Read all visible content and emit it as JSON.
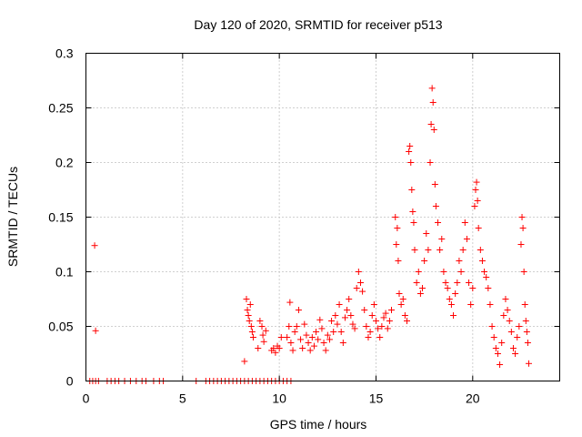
{
  "chart_data": {
    "type": "scatter",
    "title": "Day 120 of 2020, SRMTID for receiver p513",
    "xlabel": "GPS time / hours",
    "ylabel": "SRMTID / TECUs",
    "xlim": [
      0,
      24.5
    ],
    "ylim": [
      0,
      0.3
    ],
    "xticks": [
      "0",
      "5",
      "10",
      "15",
      "20"
    ],
    "yticks": [
      "0",
      "0.05",
      "0.1",
      "0.15",
      "0.2",
      "0.25",
      "0.3"
    ],
    "grid": true,
    "legend": "none",
    "series": [
      {
        "name": "SRMTID",
        "color": "#ff0000",
        "marker": "plus",
        "description": "Individual SRMTID values per epoch",
        "points": [
          [
            0.45,
            0.124
          ],
          [
            0.5,
            0.046
          ],
          [
            0.2,
            0.0
          ],
          [
            0.35,
            0.0
          ],
          [
            0.5,
            0.0
          ],
          [
            0.65,
            0.0
          ],
          [
            1.1,
            0.0
          ],
          [
            1.3,
            0.0
          ],
          [
            1.5,
            0.0
          ],
          [
            1.7,
            0.0
          ],
          [
            2.0,
            0.0
          ],
          [
            2.3,
            0.0
          ],
          [
            2.6,
            0.0
          ],
          [
            2.9,
            0.0
          ],
          [
            3.1,
            0.0
          ],
          [
            3.5,
            0.0
          ],
          [
            3.8,
            0.0
          ],
          [
            4.0,
            0.0
          ],
          [
            5.7,
            0.0
          ],
          [
            6.2,
            0.0
          ],
          [
            6.4,
            0.0
          ],
          [
            6.6,
            0.0
          ],
          [
            6.8,
            0.0
          ],
          [
            7.0,
            0.0
          ],
          [
            7.2,
            0.0
          ],
          [
            7.4,
            0.0
          ],
          [
            7.6,
            0.0
          ],
          [
            7.8,
            0.0
          ],
          [
            8.0,
            0.0
          ],
          [
            8.2,
            0.0
          ],
          [
            8.4,
            0.0
          ],
          [
            8.6,
            0.0
          ],
          [
            8.8,
            0.0
          ],
          [
            9.0,
            0.0
          ],
          [
            9.2,
            0.0
          ],
          [
            9.4,
            0.0
          ],
          [
            9.6,
            0.0
          ],
          [
            9.8,
            0.0
          ],
          [
            10.0,
            0.0
          ],
          [
            10.2,
            0.0
          ],
          [
            10.4,
            0.0
          ],
          [
            10.6,
            0.0
          ],
          [
            8.2,
            0.018
          ],
          [
            8.3,
            0.075
          ],
          [
            8.35,
            0.065
          ],
          [
            8.4,
            0.06
          ],
          [
            8.45,
            0.055
          ],
          [
            8.5,
            0.07
          ],
          [
            8.55,
            0.05
          ],
          [
            8.6,
            0.045
          ],
          [
            8.65,
            0.04
          ],
          [
            8.9,
            0.03
          ],
          [
            9.0,
            0.055
          ],
          [
            9.1,
            0.05
          ],
          [
            9.15,
            0.042
          ],
          [
            9.2,
            0.036
          ],
          [
            9.3,
            0.046
          ],
          [
            9.6,
            0.028
          ],
          [
            9.7,
            0.03
          ],
          [
            9.8,
            0.026
          ],
          [
            9.9,
            0.032
          ],
          [
            10.0,
            0.03
          ],
          [
            10.1,
            0.04
          ],
          [
            10.4,
            0.04
          ],
          [
            10.5,
            0.05
          ],
          [
            10.55,
            0.072
          ],
          [
            10.6,
            0.035
          ],
          [
            10.7,
            0.028
          ],
          [
            10.8,
            0.045
          ],
          [
            10.9,
            0.05
          ],
          [
            11.0,
            0.065
          ],
          [
            11.1,
            0.038
          ],
          [
            11.2,
            0.03
          ],
          [
            11.3,
            0.052
          ],
          [
            11.4,
            0.042
          ],
          [
            11.5,
            0.035
          ],
          [
            11.6,
            0.028
          ],
          [
            11.7,
            0.04
          ],
          [
            11.8,
            0.032
          ],
          [
            11.9,
            0.045
          ],
          [
            12.0,
            0.038
          ],
          [
            12.1,
            0.056
          ],
          [
            12.2,
            0.048
          ],
          [
            12.3,
            0.035
          ],
          [
            12.4,
            0.028
          ],
          [
            12.5,
            0.042
          ],
          [
            12.6,
            0.038
          ],
          [
            12.7,
            0.055
          ],
          [
            12.8,
            0.045
          ],
          [
            12.9,
            0.06
          ],
          [
            13.0,
            0.052
          ],
          [
            13.1,
            0.07
          ],
          [
            13.2,
            0.045
          ],
          [
            13.3,
            0.035
          ],
          [
            13.4,
            0.058
          ],
          [
            13.5,
            0.065
          ],
          [
            13.6,
            0.075
          ],
          [
            13.7,
            0.06
          ],
          [
            13.8,
            0.052
          ],
          [
            13.9,
            0.048
          ],
          [
            14.0,
            0.085
          ],
          [
            14.1,
            0.1
          ],
          [
            14.2,
            0.09
          ],
          [
            14.3,
            0.082
          ],
          [
            14.4,
            0.065
          ],
          [
            14.5,
            0.05
          ],
          [
            14.6,
            0.04
          ],
          [
            14.7,
            0.045
          ],
          [
            14.8,
            0.06
          ],
          [
            14.9,
            0.07
          ],
          [
            15.0,
            0.055
          ],
          [
            15.1,
            0.048
          ],
          [
            15.2,
            0.04
          ],
          [
            15.3,
            0.05
          ],
          [
            15.4,
            0.058
          ],
          [
            15.5,
            0.062
          ],
          [
            15.6,
            0.048
          ],
          [
            15.7,
            0.055
          ],
          [
            15.8,
            0.065
          ],
          [
            16.0,
            0.15
          ],
          [
            16.05,
            0.125
          ],
          [
            16.1,
            0.14
          ],
          [
            16.15,
            0.11
          ],
          [
            16.2,
            0.08
          ],
          [
            16.3,
            0.07
          ],
          [
            16.4,
            0.075
          ],
          [
            16.5,
            0.06
          ],
          [
            16.6,
            0.055
          ],
          [
            16.7,
            0.21
          ],
          [
            16.75,
            0.215
          ],
          [
            16.8,
            0.2
          ],
          [
            16.85,
            0.175
          ],
          [
            16.9,
            0.155
          ],
          [
            16.95,
            0.145
          ],
          [
            17.0,
            0.12
          ],
          [
            17.1,
            0.09
          ],
          [
            17.2,
            0.1
          ],
          [
            17.3,
            0.08
          ],
          [
            17.4,
            0.085
          ],
          [
            17.5,
            0.11
          ],
          [
            17.6,
            0.135
          ],
          [
            17.7,
            0.12
          ],
          [
            17.8,
            0.2
          ],
          [
            17.85,
            0.235
          ],
          [
            17.9,
            0.268
          ],
          [
            17.95,
            0.255
          ],
          [
            18.0,
            0.23
          ],
          [
            18.05,
            0.18
          ],
          [
            18.1,
            0.16
          ],
          [
            18.2,
            0.145
          ],
          [
            18.3,
            0.12
          ],
          [
            18.4,
            0.13
          ],
          [
            18.5,
            0.1
          ],
          [
            18.6,
            0.09
          ],
          [
            18.7,
            0.085
          ],
          [
            18.8,
            0.075
          ],
          [
            18.9,
            0.07
          ],
          [
            19.0,
            0.06
          ],
          [
            19.1,
            0.08
          ],
          [
            19.2,
            0.09
          ],
          [
            19.3,
            0.11
          ],
          [
            19.4,
            0.1
          ],
          [
            19.5,
            0.12
          ],
          [
            19.6,
            0.145
          ],
          [
            19.7,
            0.13
          ],
          [
            19.8,
            0.09
          ],
          [
            19.9,
            0.07
          ],
          [
            20.0,
            0.085
          ],
          [
            20.1,
            0.16
          ],
          [
            20.15,
            0.175
          ],
          [
            20.2,
            0.182
          ],
          [
            20.25,
            0.165
          ],
          [
            20.3,
            0.14
          ],
          [
            20.4,
            0.12
          ],
          [
            20.5,
            0.11
          ],
          [
            20.6,
            0.1
          ],
          [
            20.7,
            0.095
          ],
          [
            20.8,
            0.085
          ],
          [
            20.9,
            0.07
          ],
          [
            21.0,
            0.05
          ],
          [
            21.1,
            0.04
          ],
          [
            21.2,
            0.03
          ],
          [
            21.3,
            0.025
          ],
          [
            21.4,
            0.015
          ],
          [
            21.5,
            0.035
          ],
          [
            21.6,
            0.06
          ],
          [
            21.7,
            0.075
          ],
          [
            21.8,
            0.065
          ],
          [
            21.9,
            0.055
          ],
          [
            22.0,
            0.045
          ],
          [
            22.1,
            0.03
          ],
          [
            22.2,
            0.025
          ],
          [
            22.3,
            0.04
          ],
          [
            22.4,
            0.05
          ],
          [
            22.5,
            0.125
          ],
          [
            22.55,
            0.15
          ],
          [
            22.6,
            0.14
          ],
          [
            22.65,
            0.1
          ],
          [
            22.7,
            0.07
          ],
          [
            22.75,
            0.055
          ],
          [
            22.8,
            0.045
          ],
          [
            22.85,
            0.035
          ],
          [
            22.9,
            0.016
          ]
        ]
      }
    ]
  }
}
